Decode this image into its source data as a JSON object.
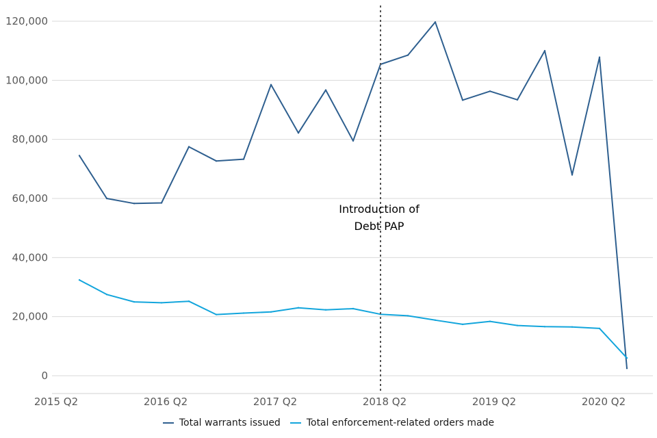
{
  "chart_data": {
    "type": "line",
    "x": [
      "2015 Q2",
      "2015 Q3",
      "2015 Q4",
      "2016 Q1",
      "2016 Q2",
      "2016 Q3",
      "2016 Q4",
      "2017 Q1",
      "2017 Q2",
      "2017 Q3",
      "2017 Q4",
      "2018 Q1",
      "2018 Q2",
      "2018 Q3",
      "2018 Q4",
      "2019 Q1",
      "2019 Q2",
      "2019 Q3",
      "2019 Q4",
      "2020 Q1",
      "2020 Q2"
    ],
    "x_tick_labels": [
      "2015 Q2",
      "2016 Q2",
      "2017 Q2",
      "2018 Q2",
      "2019 Q2",
      "2020 Q2"
    ],
    "y_tick_labels": [
      "0",
      "20,000",
      "40,000",
      "60,000",
      "80,000",
      "100,000",
      "120,000"
    ],
    "ylim": [
      -6000,
      126000
    ],
    "grid": true,
    "legend_position": "bottom",
    "series": [
      {
        "name": "Total warrants issued",
        "color": "#2e5f8f",
        "values": [
          74500,
          60000,
          58300,
          58500,
          77500,
          72700,
          73300,
          98500,
          82200,
          96700,
          79500,
          105400,
          108500,
          119700,
          93300,
          96300,
          93400,
          110000,
          68000,
          107800,
          2500
        ]
      },
      {
        "name": "Total enforcement-related orders made",
        "color": "#12a5dc",
        "values": [
          32400,
          27500,
          25000,
          24700,
          25200,
          20700,
          21200,
          21600,
          23000,
          22300,
          22700,
          20800,
          20300,
          18800,
          17400,
          18400,
          17000,
          16600,
          16500,
          16000,
          6000
        ]
      }
    ],
    "annotations": [
      {
        "x": "2018 Q1",
        "style": "dotted-vertical-line",
        "text_lines": [
          "Introduction of",
          "Debt PAP"
        ]
      }
    ]
  }
}
